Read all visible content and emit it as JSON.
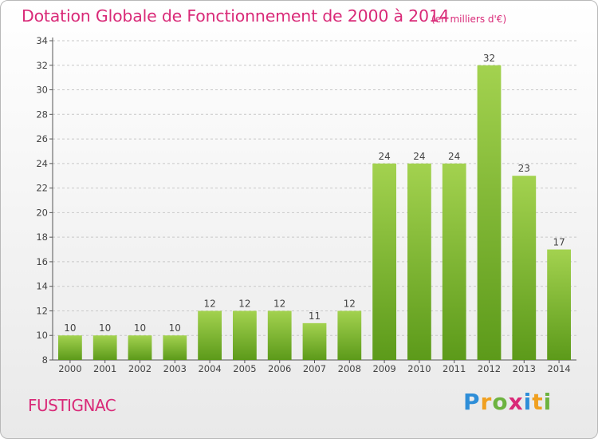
{
  "header": {
    "title": "Dotation Globale de Fonctionnement de 2000 à 2014",
    "subtitle": "(en milliers d'€)"
  },
  "footer": {
    "commune": "FUSTIGNAC",
    "logo_letters": [
      "P",
      "r",
      "o",
      "x",
      "i",
      "t",
      "i"
    ],
    "logo_colors": [
      "#2e8ed8",
      "#f0a020",
      "#6db33f",
      "#d92a78",
      "#2e8ed8",
      "#f0a020",
      "#6db33f"
    ]
  },
  "chart_data": {
    "type": "bar",
    "title": "Dotation Globale de Fonctionnement de 2000 à 2014",
    "subtitle": "(en milliers d'€)",
    "categories": [
      "2000",
      "2001",
      "2002",
      "2003",
      "2004",
      "2005",
      "2006",
      "2007",
      "2008",
      "2009",
      "2010",
      "2011",
      "2012",
      "2013",
      "2014"
    ],
    "values": [
      10,
      10,
      10,
      10,
      12,
      12,
      12,
      11,
      12,
      24,
      24,
      24,
      32,
      23,
      17
    ],
    "ylim": [
      8,
      34
    ],
    "yticks": [
      8,
      10,
      12,
      14,
      16,
      18,
      20,
      22,
      24,
      26,
      28,
      30,
      32,
      34
    ],
    "grid": "horizontal dashed",
    "bar_color_top": "#a3d24f",
    "bar_color_bottom": "#5c9a1a"
  }
}
